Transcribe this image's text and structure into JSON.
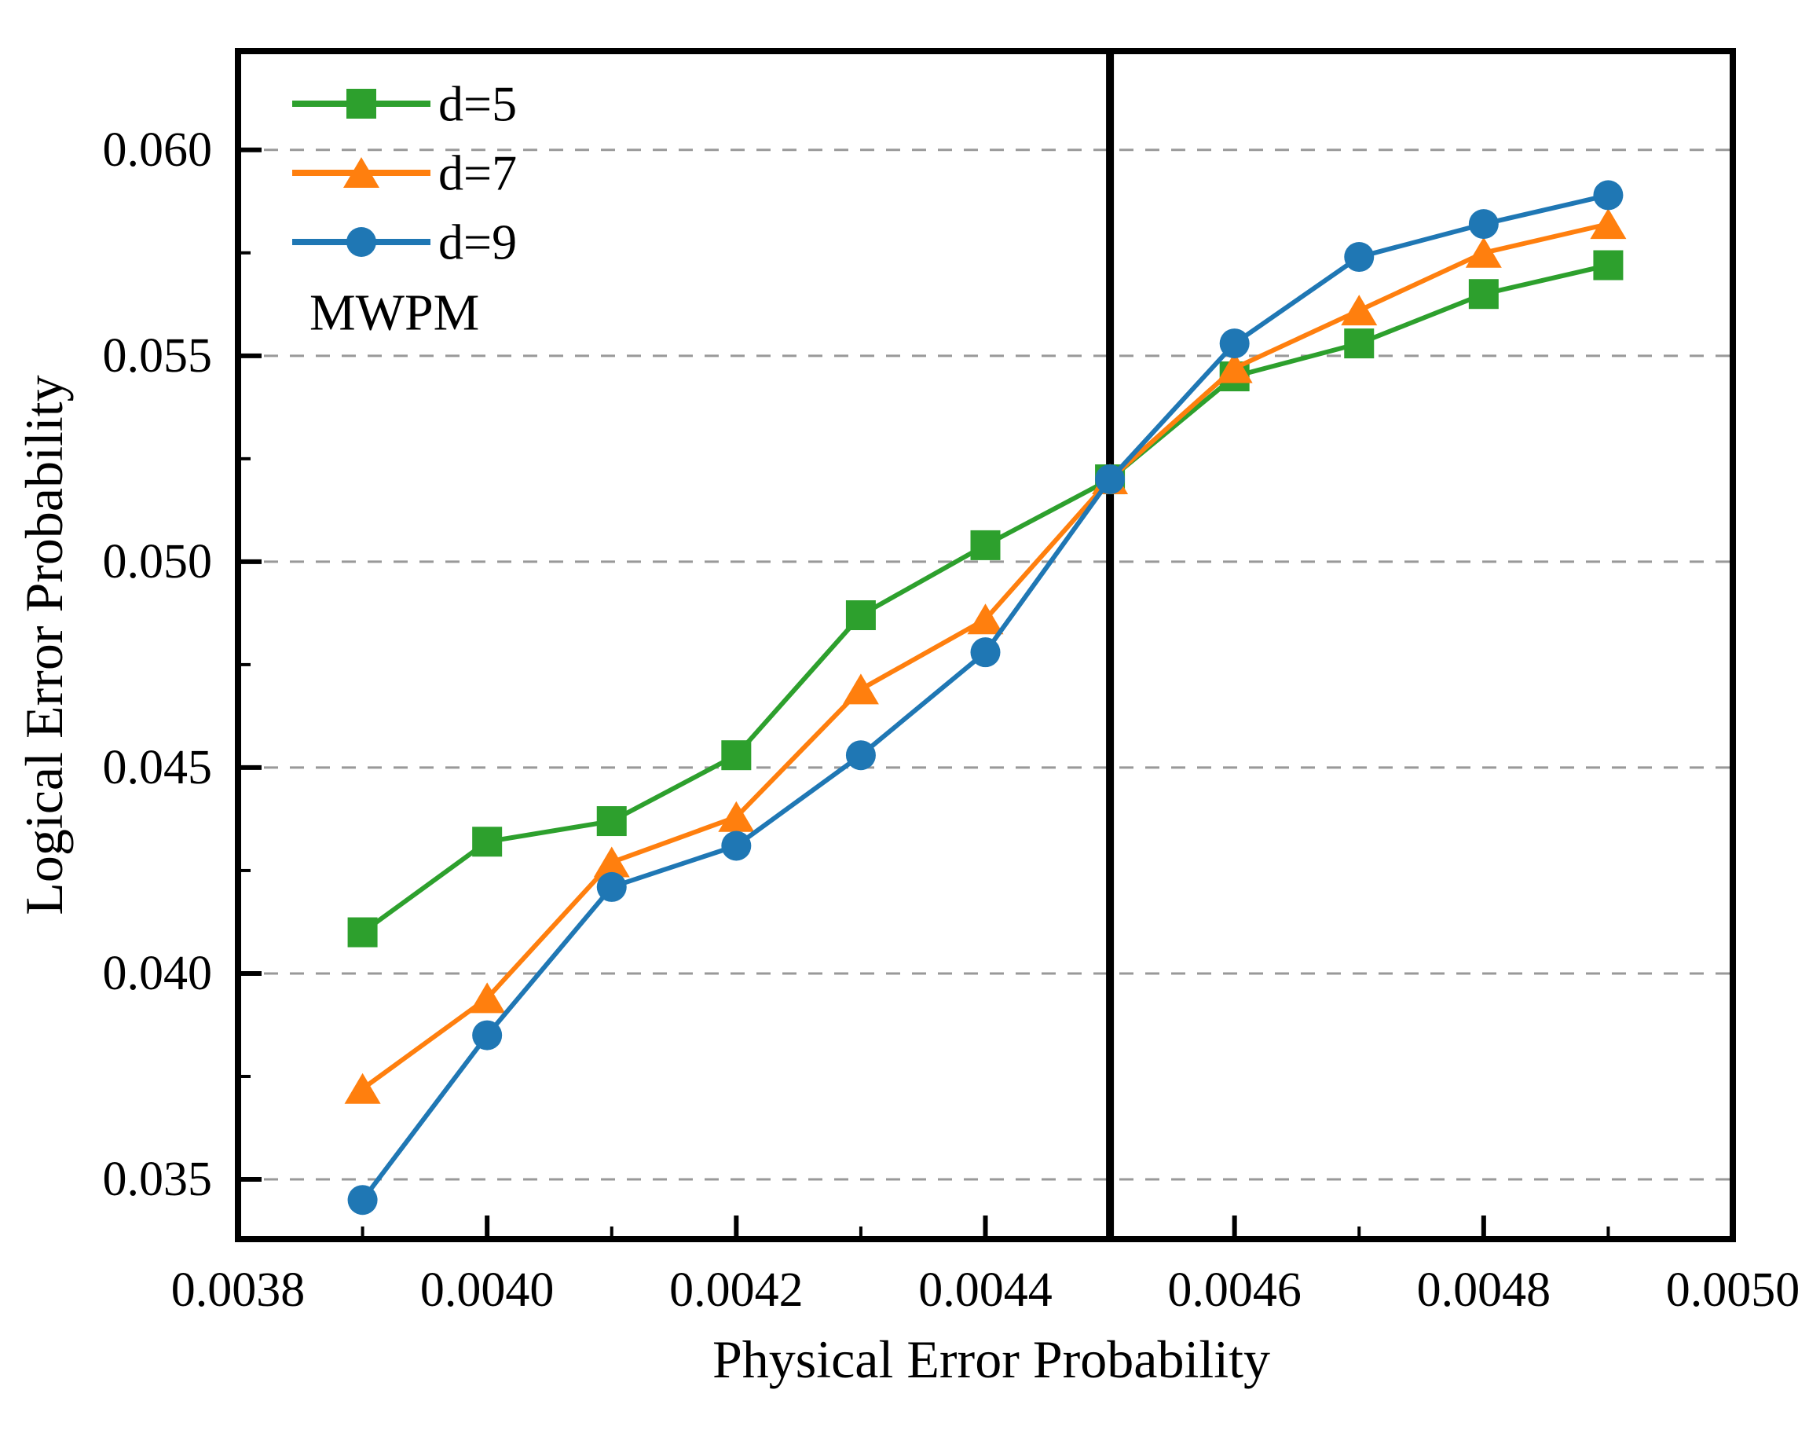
{
  "figure": {
    "annotation": "MWPM"
  },
  "chart_data": {
    "type": "line",
    "title": "",
    "xlabel": "Physical Error Probability",
    "ylabel": "Logical Error Probability",
    "xlim": [
      0.0038,
      0.005
    ],
    "ylim": [
      0.03355,
      0.0624
    ],
    "grid": "horizontal-dashed",
    "grid_color": "#999999",
    "legend_position": "top-left-inside",
    "x": [
      0.0039,
      0.004,
      0.0041,
      0.0042,
      0.0043,
      0.0044,
      0.0045,
      0.0046,
      0.0047,
      0.0048,
      0.0049
    ],
    "series": [
      {
        "name": "d=5",
        "marker": "square",
        "color": "#2DA02D",
        "values": [
          0.041,
          0.0432,
          0.0437,
          0.0453,
          0.0487,
          0.0504,
          0.052,
          0.0545,
          0.0553,
          0.0565,
          0.0572
        ]
      },
      {
        "name": "d=7",
        "marker": "triangle",
        "color": "#FF7F0E",
        "values": [
          0.0372,
          0.0394,
          0.0427,
          0.0438,
          0.0469,
          0.0486,
          0.052,
          0.0547,
          0.0561,
          0.0575,
          0.0582
        ]
      },
      {
        "name": "d=9",
        "marker": "circle",
        "color": "#1F77B4",
        "values": [
          0.0345,
          0.0385,
          0.0421,
          0.0431,
          0.0453,
          0.0478,
          0.052,
          0.0553,
          0.0574,
          0.0582,
          0.0589
        ]
      }
    ],
    "threshold_vline": {
      "x": 0.0045,
      "color": "#000000"
    },
    "xticks": {
      "values": [
        0.0038,
        0.004,
        0.0042,
        0.0044,
        0.0046,
        0.0048,
        0.005
      ],
      "labels": [
        "0.0038",
        "0.0040",
        "0.0042",
        "0.0044",
        "0.0046",
        "0.0048",
        "0.0050"
      ]
    },
    "xminor": [
      0.0039,
      0.0041,
      0.0043,
      0.0045,
      0.0047,
      0.0049
    ],
    "yticks": {
      "values": [
        0.035,
        0.04,
        0.045,
        0.05,
        0.055,
        0.06
      ],
      "labels": [
        "0.035",
        "0.040",
        "0.045",
        "0.050",
        "0.055",
        "0.060"
      ]
    },
    "yminor": [
      0.0375,
      0.0425,
      0.0475,
      0.0525,
      0.0575
    ]
  }
}
